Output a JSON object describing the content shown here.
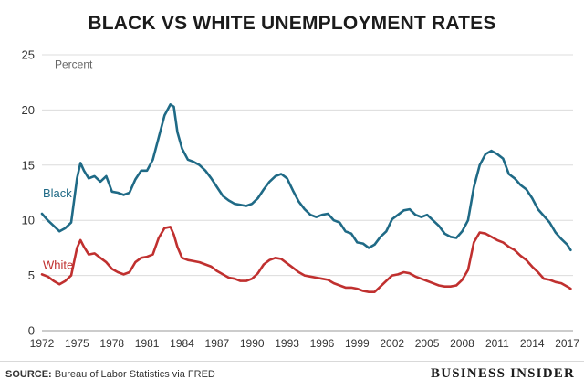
{
  "title": "BLACK VS WHITE UNEMPLOYMENT RATES",
  "source_label": "SOURCE:",
  "source_text": "Bureau of Labor Statistics via FRED",
  "brand": "BUSINESS INSIDER",
  "colors": {
    "black_series": "#1f6a86",
    "white_series": "#c0302f",
    "grid": "#dcdcdc",
    "axis_text": "#333333"
  },
  "chart_data": {
    "type": "line",
    "ylabel": "Percent",
    "xlabel": "",
    "ylim": [
      0,
      25
    ],
    "yticks": [
      0,
      5,
      10,
      15,
      20,
      25
    ],
    "xlim": [
      1972,
      2017.5
    ],
    "xticks": [
      "1972",
      "1975",
      "1978",
      "1981",
      "1984",
      "1987",
      "1990",
      "1993",
      "1996",
      "1999",
      "2002",
      "2005",
      "2008",
      "2011",
      "2014",
      "2017"
    ],
    "grid": "horizontal",
    "series": [
      {
        "name": "Black",
        "x": [
          1972.0,
          1972.5,
          1973.0,
          1973.5,
          1974.0,
          1974.5,
          1975.0,
          1975.3,
          1975.6,
          1976.0,
          1976.5,
          1977.0,
          1977.5,
          1978.0,
          1978.5,
          1979.0,
          1979.5,
          1980.0,
          1980.5,
          1981.0,
          1981.5,
          1982.0,
          1982.5,
          1983.0,
          1983.3,
          1983.6,
          1984.0,
          1984.5,
          1985.0,
          1985.5,
          1986.0,
          1986.5,
          1987.0,
          1987.5,
          1988.0,
          1988.5,
          1989.0,
          1989.5,
          1990.0,
          1990.5,
          1991.0,
          1991.5,
          1992.0,
          1992.5,
          1993.0,
          1993.5,
          1994.0,
          1994.5,
          1995.0,
          1995.5,
          1996.0,
          1996.5,
          1997.0,
          1997.5,
          1998.0,
          1998.5,
          1999.0,
          1999.5,
          2000.0,
          2000.5,
          2001.0,
          2001.5,
          2002.0,
          2002.5,
          2003.0,
          2003.5,
          2004.0,
          2004.5,
          2005.0,
          2005.5,
          2006.0,
          2006.5,
          2007.0,
          2007.5,
          2008.0,
          2008.5,
          2009.0,
          2009.5,
          2010.0,
          2010.5,
          2011.0,
          2011.5,
          2012.0,
          2012.5,
          2013.0,
          2013.5,
          2014.0,
          2014.5,
          2015.0,
          2015.5,
          2016.0,
          2016.5,
          2017.0,
          2017.3
        ],
        "values": [
          10.6,
          10.0,
          9.5,
          9.0,
          9.3,
          9.8,
          13.8,
          15.2,
          14.5,
          13.8,
          14.0,
          13.5,
          14.0,
          12.6,
          12.5,
          12.3,
          12.5,
          13.7,
          14.5,
          14.5,
          15.5,
          17.5,
          19.5,
          20.5,
          20.3,
          18.0,
          16.5,
          15.5,
          15.3,
          15.0,
          14.5,
          13.8,
          13.0,
          12.2,
          11.8,
          11.5,
          11.4,
          11.3,
          11.5,
          12.0,
          12.8,
          13.5,
          14.0,
          14.2,
          13.8,
          12.7,
          11.7,
          11.0,
          10.5,
          10.3,
          10.5,
          10.6,
          10.0,
          9.8,
          9.0,
          8.8,
          8.0,
          7.9,
          7.5,
          7.8,
          8.5,
          9.0,
          10.1,
          10.5,
          10.9,
          11.0,
          10.5,
          10.3,
          10.5,
          10.0,
          9.5,
          8.8,
          8.5,
          8.4,
          9.0,
          10.0,
          13.0,
          15.0,
          16.0,
          16.3,
          16.0,
          15.6,
          14.2,
          13.8,
          13.2,
          12.8,
          12.0,
          11.0,
          10.4,
          9.8,
          8.9,
          8.3,
          7.8,
          7.3
        ]
      },
      {
        "name": "White",
        "x": [
          1972.0,
          1972.5,
          1973.0,
          1973.5,
          1974.0,
          1974.5,
          1975.0,
          1975.3,
          1975.6,
          1976.0,
          1976.5,
          1977.0,
          1977.5,
          1978.0,
          1978.5,
          1979.0,
          1979.5,
          1980.0,
          1980.5,
          1981.0,
          1981.5,
          1982.0,
          1982.5,
          1983.0,
          1983.3,
          1983.6,
          1984.0,
          1984.5,
          1985.0,
          1985.5,
          1986.0,
          1986.5,
          1987.0,
          1987.5,
          1988.0,
          1988.5,
          1989.0,
          1989.5,
          1990.0,
          1990.5,
          1991.0,
          1991.5,
          1992.0,
          1992.5,
          1993.0,
          1993.5,
          1994.0,
          1994.5,
          1995.0,
          1995.5,
          1996.0,
          1996.5,
          1997.0,
          1997.5,
          1998.0,
          1998.5,
          1999.0,
          1999.5,
          2000.0,
          2000.5,
          2001.0,
          2001.5,
          2002.0,
          2002.5,
          2003.0,
          2003.5,
          2004.0,
          2004.5,
          2005.0,
          2005.5,
          2006.0,
          2006.5,
          2007.0,
          2007.5,
          2008.0,
          2008.5,
          2009.0,
          2009.5,
          2010.0,
          2010.5,
          2011.0,
          2011.5,
          2012.0,
          2012.5,
          2013.0,
          2013.5,
          2014.0,
          2014.5,
          2015.0,
          2015.5,
          2016.0,
          2016.5,
          2017.0,
          2017.3
        ],
        "values": [
          5.1,
          4.9,
          4.5,
          4.2,
          4.5,
          5.0,
          7.5,
          8.2,
          7.6,
          6.9,
          7.0,
          6.6,
          6.2,
          5.6,
          5.3,
          5.1,
          5.3,
          6.2,
          6.6,
          6.7,
          6.9,
          8.4,
          9.3,
          9.4,
          8.7,
          7.6,
          6.6,
          6.4,
          6.3,
          6.2,
          6.0,
          5.8,
          5.4,
          5.1,
          4.8,
          4.7,
          4.5,
          4.5,
          4.7,
          5.2,
          6.0,
          6.4,
          6.6,
          6.5,
          6.1,
          5.7,
          5.3,
          5.0,
          4.9,
          4.8,
          4.7,
          4.6,
          4.3,
          4.1,
          3.9,
          3.9,
          3.8,
          3.6,
          3.5,
          3.5,
          4.0,
          4.5,
          5.0,
          5.1,
          5.3,
          5.2,
          4.9,
          4.7,
          4.5,
          4.3,
          4.1,
          4.0,
          4.0,
          4.1,
          4.6,
          5.5,
          8.0,
          8.9,
          8.8,
          8.5,
          8.2,
          8.0,
          7.6,
          7.3,
          6.8,
          6.4,
          5.8,
          5.3,
          4.7,
          4.6,
          4.4,
          4.3,
          4.0,
          3.8
        ]
      }
    ]
  }
}
